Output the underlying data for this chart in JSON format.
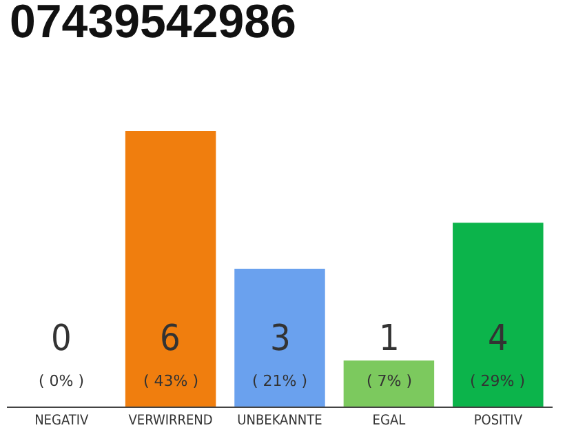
{
  "chart_data": {
    "type": "bar",
    "title": "07439542986",
    "categories": [
      "NEGATIV",
      "VERWIRREND",
      "UNBEKANNTE",
      "EGAL",
      "POSITIV"
    ],
    "values": [
      0,
      6,
      3,
      1,
      4
    ],
    "colors": [
      "#e0e0e0",
      "#f07e0e",
      "#6aa1ee",
      "#7cc95e",
      "#0cb44b"
    ],
    "value_labels": [
      "0\n( 0% )",
      "6\n( 43% )",
      "3\n( 21% )",
      "1\n( 7% )",
      "4\n( 29% )"
    ],
    "ylim": [
      0,
      6
    ],
    "tick_labels": "x"
  }
}
